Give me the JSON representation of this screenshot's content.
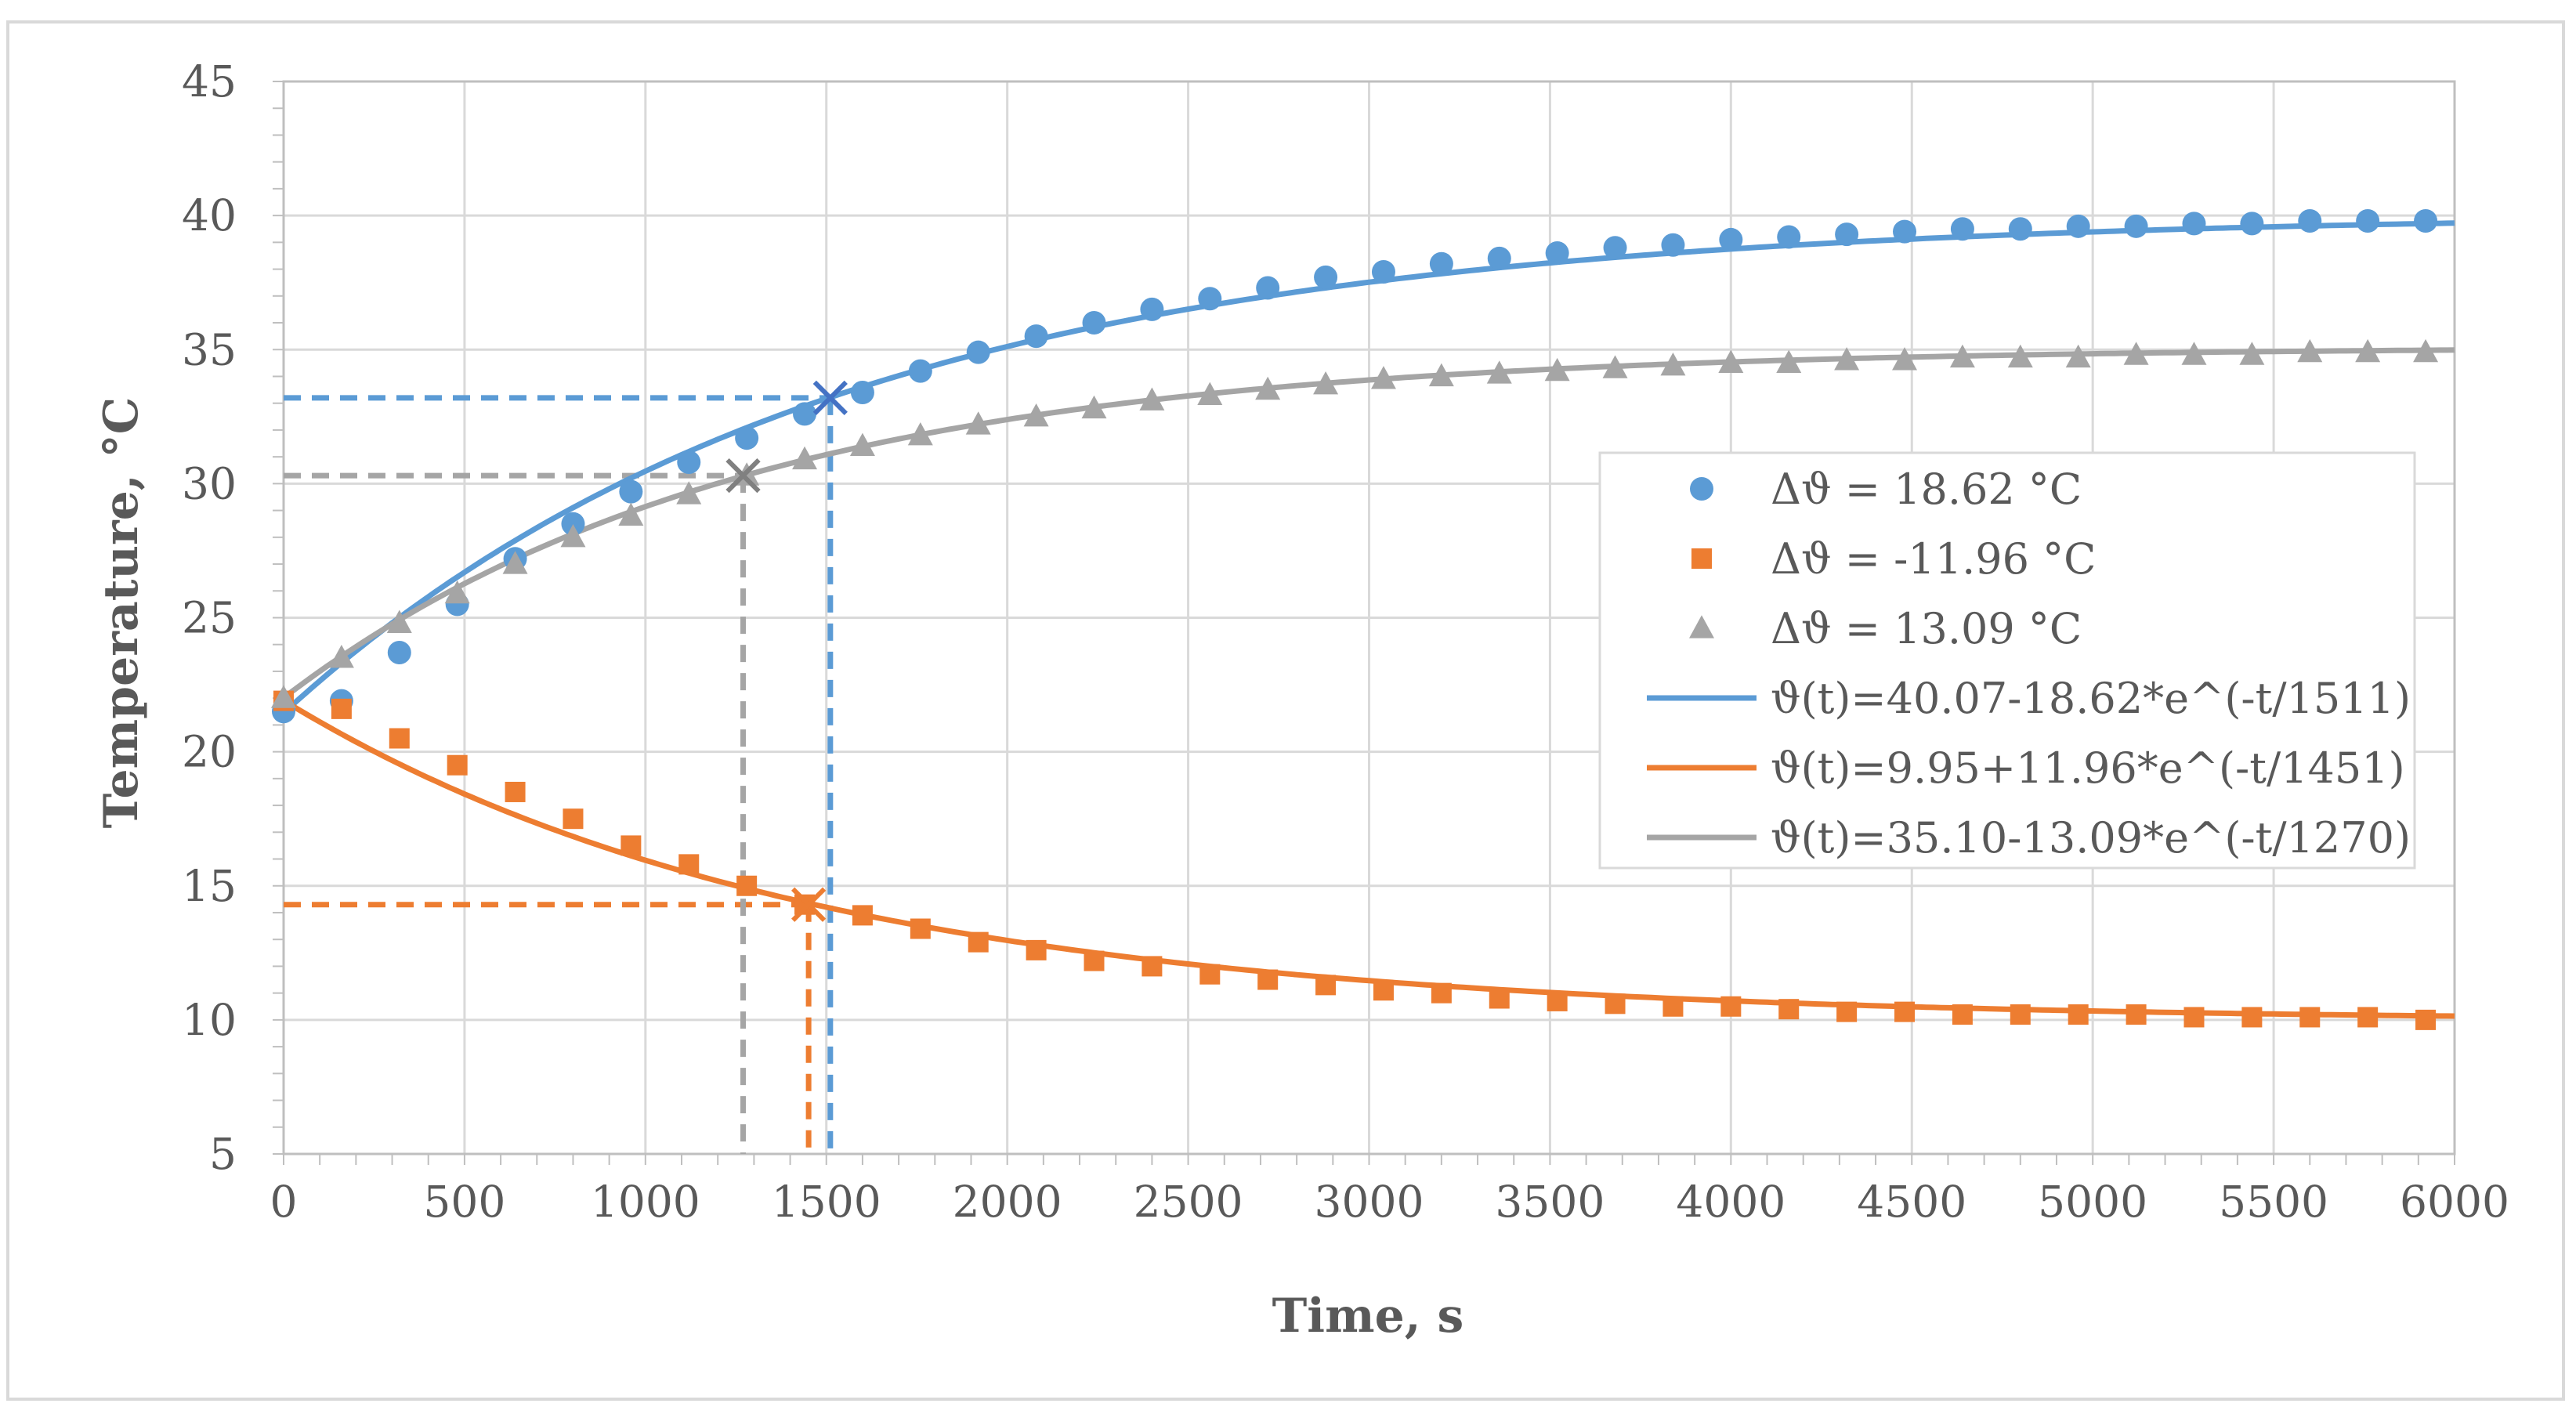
{
  "chart_data": {
    "type": "scatter",
    "title": "",
    "xlabel": "Time, s",
    "ylabel": "Temperature, °C",
    "xlim": [
      0,
      6000
    ],
    "ylim": [
      5,
      45
    ],
    "x_ticks": [
      0,
      500,
      1000,
      1500,
      2000,
      2500,
      3000,
      3500,
      4000,
      4500,
      5000,
      5500,
      6000
    ],
    "y_ticks": [
      5,
      10,
      15,
      20,
      25,
      30,
      35,
      40,
      45
    ],
    "x_tick_labels": [
      "0",
      "500",
      "1000",
      "1500",
      "2000",
      "2500",
      "3000",
      "3500",
      "4000",
      "4500",
      "5000",
      "5500",
      "6000"
    ],
    "y_tick_labels": [
      "5",
      "10",
      "15",
      "20",
      "25",
      "30",
      "35",
      "40",
      "45"
    ],
    "grid": true,
    "legend_position": "center-right",
    "colors": {
      "blue": "#5b9bd5",
      "orange": "#ed7d31",
      "gray": "#a5a5a5",
      "blue_mark": "#4472c4"
    },
    "x": [
      0,
      160,
      320,
      480,
      640,
      800,
      960,
      1120,
      1280,
      1440,
      1600,
      1760,
      1920,
      2080,
      2240,
      2400,
      2560,
      2720,
      2880,
      3040,
      3200,
      3360,
      3520,
      3680,
      3840,
      4000,
      4160,
      4320,
      4480,
      4640,
      4800,
      4960,
      5120,
      5280,
      5440,
      5600,
      5760,
      5920
    ],
    "series": [
      {
        "name": "Δϑ = 18.62 °C",
        "marker": "circle",
        "color": "#5b9bd5",
        "values": [
          21.5,
          21.9,
          23.7,
          25.5,
          27.2,
          28.5,
          29.7,
          30.8,
          31.7,
          32.6,
          33.4,
          34.2,
          34.9,
          35.5,
          36.0,
          36.5,
          36.9,
          37.3,
          37.7,
          37.9,
          38.2,
          38.4,
          38.6,
          38.8,
          38.9,
          39.1,
          39.2,
          39.3,
          39.4,
          39.5,
          39.5,
          39.6,
          39.6,
          39.7,
          39.7,
          39.8,
          39.8,
          39.8
        ]
      },
      {
        "name": "Δϑ = -11.96 °C",
        "marker": "square",
        "color": "#ed7d31",
        "values": [
          21.9,
          21.6,
          20.5,
          19.5,
          18.5,
          17.5,
          16.5,
          15.8,
          15.0,
          14.3,
          13.9,
          13.4,
          12.9,
          12.6,
          12.2,
          12.0,
          11.7,
          11.5,
          11.3,
          11.1,
          11.0,
          10.8,
          10.7,
          10.6,
          10.5,
          10.5,
          10.4,
          10.3,
          10.3,
          10.2,
          10.2,
          10.2,
          10.2,
          10.1,
          10.1,
          10.1,
          10.1,
          10.0
        ]
      },
      {
        "name": "Δϑ = 13.09 °C",
        "marker": "triangle",
        "color": "#a5a5a5",
        "values": [
          22.0,
          23.5,
          24.8,
          25.9,
          27.0,
          28.0,
          28.8,
          29.6,
          30.3,
          30.9,
          31.4,
          31.8,
          32.2,
          32.5,
          32.8,
          33.1,
          33.3,
          33.5,
          33.7,
          33.9,
          34.0,
          34.1,
          34.2,
          34.3,
          34.4,
          34.5,
          34.5,
          34.6,
          34.6,
          34.7,
          34.7,
          34.7,
          34.8,
          34.8,
          34.8,
          34.9,
          34.9,
          34.9
        ]
      }
    ],
    "fits": [
      {
        "name": "ϑ(t)=40.07-18.62*e^(-t/1511)",
        "a": 40.07,
        "b": -18.62,
        "tau": 1511,
        "color": "#5b9bd5"
      },
      {
        "name": "ϑ(t)=9.95+11.96*e^(-t/1451)",
        "a": 9.95,
        "b": 11.96,
        "tau": 1451,
        "color": "#ed7d31"
      },
      {
        "name": "ϑ(t)=35.10-13.09*e^(-t/1270)",
        "a": 35.1,
        "b": -13.09,
        "tau": 1270,
        "color": "#a5a5a5"
      }
    ],
    "time_constant_markers": [
      {
        "x": 1511,
        "y": 33.2,
        "color": "#4472c4",
        "line_color": "#5b9bd5"
      },
      {
        "x": 1451,
        "y": 14.3,
        "color": "#ed7d31",
        "line_color": "#ed7d31"
      },
      {
        "x": 1270,
        "y": 30.3,
        "color": "#808080",
        "line_color": "#a5a5a5"
      }
    ]
  }
}
